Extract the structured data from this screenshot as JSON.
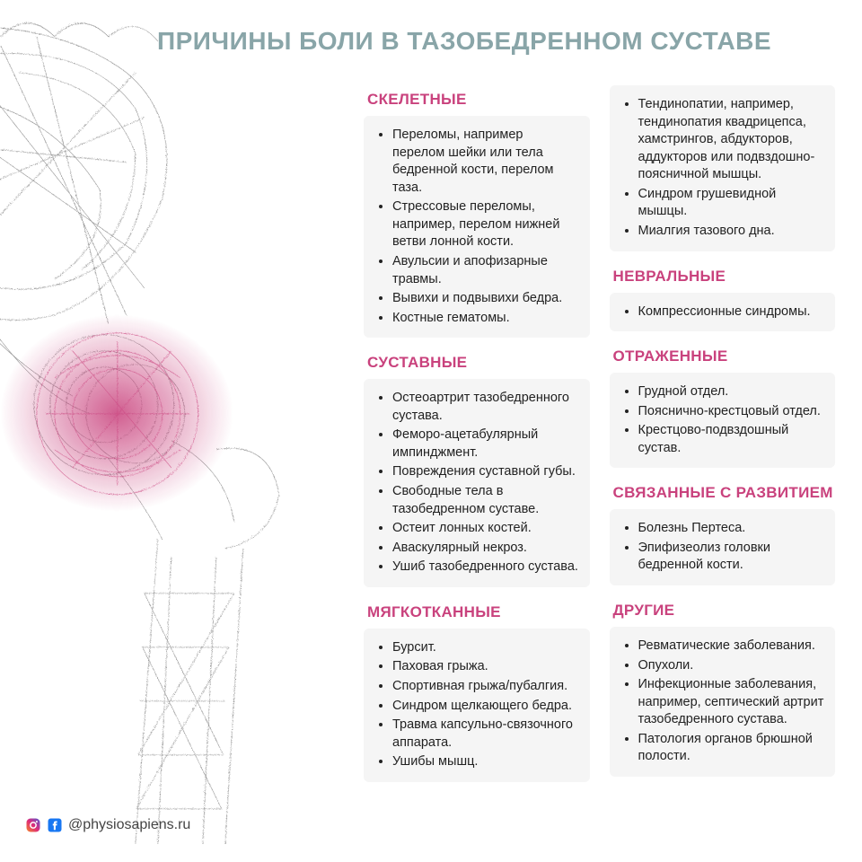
{
  "title": "ПРИЧИНЫ БОЛИ В ТАЗОБЕДРЕННОМ СУСТАВЕ",
  "title_color": "#89a5a8",
  "heading_color": "#c9427d",
  "card_bg": "#f5f5f5",
  "text_color": "#222222",
  "illustration": {
    "line_color": "#7a7a7a",
    "highlight_color": "#c9427d"
  },
  "columns": [
    {
      "sections": [
        {
          "title": "СКЕЛЕТНЫЕ",
          "items": [
            "Переломы, например перелом шейки или тела бедренной кости, перелом таза.",
            "Стрессовые переломы, например, перелом нижней ветви лонной кости.",
            "Авульсии и апофизарные травмы.",
            "Вывихи и подвывихи бедра.",
            "Костные гематомы."
          ]
        },
        {
          "title": "СУСТАВНЫЕ",
          "items": [
            "Остеоартрит тазобедренного сустава.",
            "Феморо-ацетабулярный импинджмент.",
            "Повреждения суставной губы.",
            "Свободные тела в тазобедренном суставе.",
            "Остеит лонных костей.",
            "Аваскулярный некроз.",
            "Ушиб тазобедренного сустава."
          ]
        },
        {
          "title": "МЯГКОТКАННЫЕ",
          "items": [
            "Бурсит.",
            "Паховая грыжа.",
            "Спортивная грыжа/пубалгия.",
            "Синдром щелкающего бедра.",
            "Травма капсульно-связочного аппарата.",
            "Ушибы мышц."
          ]
        }
      ]
    },
    {
      "sections": [
        {
          "title": "",
          "items": [
            "Тендинопатии, например, тендинопатия квадрицепса, хамстрингов, абдукторов, аддукторов или подвздошно-поясничной мышцы.",
            "Синдром грушевидной мышцы.",
            "Миалгия тазового дна."
          ]
        },
        {
          "title": "НЕВРАЛЬНЫЕ",
          "items": [
            "Компрессионные синдромы."
          ]
        },
        {
          "title": "ОТРАЖЕННЫЕ",
          "items": [
            "Грудной отдел.",
            "Пояснично-крестцовый отдел.",
            "Крестцово-подвздошный сустав."
          ]
        },
        {
          "title": "СВЯЗАННЫЕ С РАЗВИТИЕМ",
          "items": [
            "Болезнь Пертеса.",
            "Эпифизеолиз головки бедренной кости."
          ]
        },
        {
          "title": "ДРУГИЕ",
          "items": [
            "Ревматические заболевания.",
            "Опухоли.",
            "Инфекционные заболевания, например, септический артрит тазобедренного сустава.",
            "Патология органов брюшной полости."
          ]
        }
      ]
    }
  ],
  "footer": {
    "handle": "@physiosapiens.ru",
    "instagram_gradient": [
      "#f58529",
      "#dd2a7b",
      "#8134af",
      "#515bd4"
    ],
    "facebook_color": "#1877f2"
  }
}
